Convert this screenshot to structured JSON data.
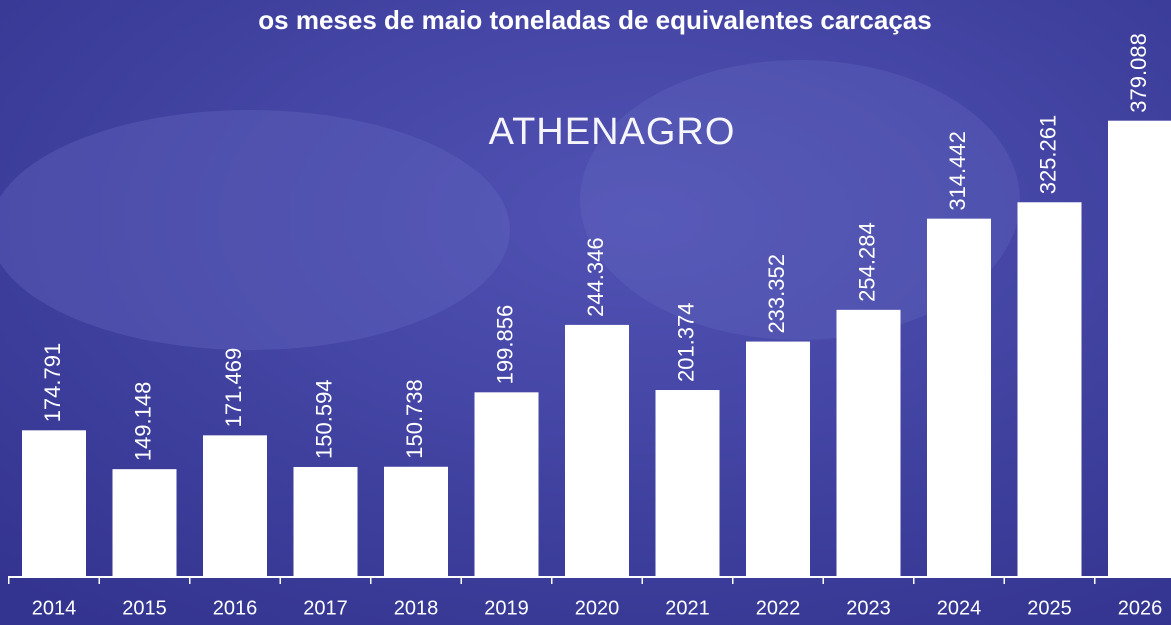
{
  "chart_data": {
    "type": "bar",
    "title": "os meses de maio  toneladas de equivalentes carcaças",
    "annotation": "ATHENAGRO",
    "categories": [
      "2014",
      "2015",
      "2016",
      "2017",
      "2018",
      "2019",
      "2020",
      "2021",
      "2022",
      "2023",
      "2024",
      "2025",
      "2026"
    ],
    "values": [
      174791,
      149148,
      171469,
      150594,
      150738,
      199856,
      244346,
      201374,
      233352,
      254284,
      314442,
      325261,
      379088
    ],
    "value_labels": [
      "174.791",
      "149.148",
      "171.469",
      "150.594",
      "150.738",
      "199.856",
      "244.346",
      "201.374",
      "233.352",
      "254.284",
      "314.442",
      "325.261",
      "379.088"
    ],
    "color": "#ffffff",
    "ylim": [
      78000,
      400000
    ]
  }
}
